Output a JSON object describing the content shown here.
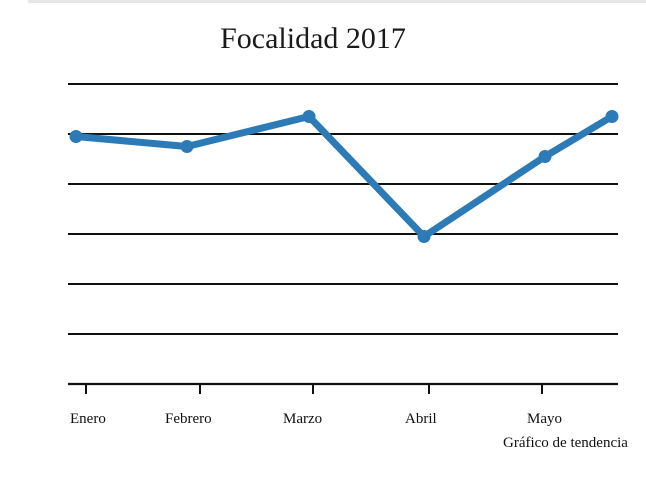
{
  "chart_data": {
    "type": "line",
    "title": "Focalidad 2017",
    "caption": "Gráfico de tendencia",
    "categories": [
      "Enero",
      "Febrero",
      "Marzo",
      "Abril",
      "Mayo",
      ""
    ],
    "series": [
      {
        "values": [
          4.95,
          4.75,
          5.35,
          2.95,
          4.55,
          5.35
        ]
      }
    ],
    "ylim": [
      0,
      6
    ],
    "grid": true,
    "color": "#2c7bb6"
  }
}
